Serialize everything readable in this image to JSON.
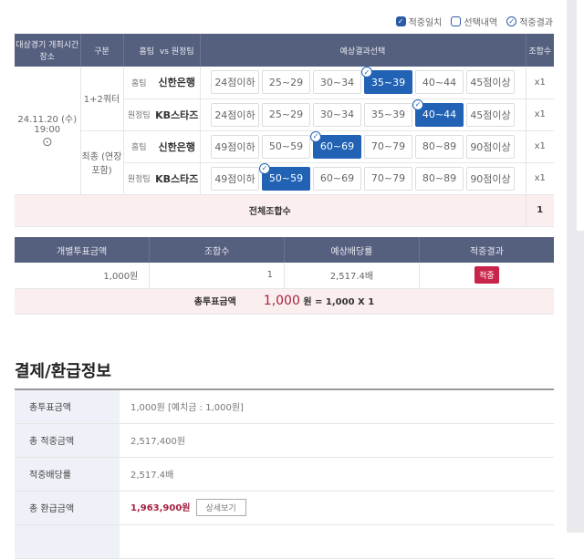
{
  "legend": [
    "적중일치",
    "선택내역",
    "적중결과"
  ],
  "table1": {
    "headers": [
      "대상경기 개최시간 장소",
      "구분",
      "홈팀",
      "vs 원정팀",
      "예상결과선택",
      "조합수"
    ],
    "match": {
      "date": "24.11.20 (수)",
      "time": "19:00"
    },
    "groups": [
      {
        "label": "1+2쿼터",
        "rows": [
          {
            "side": "홈팀",
            "team": "신한은행",
            "options": [
              "24점이하",
              "25~29",
              "30~34",
              "35~39",
              "40~44",
              "45점이상"
            ],
            "selected": 3,
            "count": "x1"
          },
          {
            "side": "원정팀",
            "team": "KB스타즈",
            "options": [
              "24점이하",
              "25~29",
              "30~34",
              "35~39",
              "40~44",
              "45점이상"
            ],
            "selected": 4,
            "count": "x1"
          }
        ]
      },
      {
        "label": "최종 (연장포함)",
        "rows": [
          {
            "side": "홈팀",
            "team": "신한은행",
            "options": [
              "49점이하",
              "50~59",
              "60~69",
              "70~79",
              "80~89",
              "90점이상"
            ],
            "selected": 2,
            "count": "x1"
          },
          {
            "side": "원정팀",
            "team": "KB스타즈",
            "options": [
              "49점이하",
              "50~59",
              "60~69",
              "70~79",
              "80~89",
              "90점이상"
            ],
            "selected": 1,
            "count": "x1"
          }
        ]
      }
    ],
    "total_label": "전체조합수",
    "total_value": "1"
  },
  "table2": {
    "headers": [
      "개별투표금액",
      "조합수",
      "예상배당률",
      "적중결과"
    ],
    "row": [
      "1,000원",
      "1",
      "2,517.4배",
      "적중"
    ],
    "total_label": "총투표금액",
    "total_amount": "1,000",
    "total_formula": "원 = 1,000 X 1"
  },
  "payment": {
    "title": "결제/환급정보",
    "rows": [
      {
        "label": "총투표금액",
        "value": "1,000원 [예치금 : 1,000원]"
      },
      {
        "label": "총 적중금액",
        "value": "2,517,400원"
      },
      {
        "label": "적중배당률",
        "value": "2,517.4배"
      },
      {
        "label": "총 환급금액",
        "value": "1,963,900원",
        "button": "상세보기"
      }
    ]
  }
}
